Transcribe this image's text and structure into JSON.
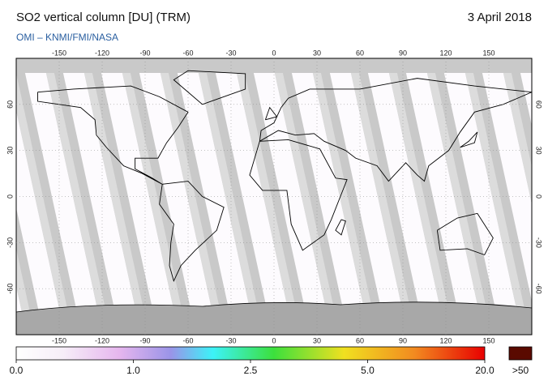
{
  "header": {
    "title": "SO2 vertical column [DU] (TRM)",
    "date": "3 April 2018",
    "credit": "OMI  –  KNMI/FMI/NASA"
  },
  "map": {
    "xlim": [
      -180,
      180
    ],
    "ylim": [
      -90,
      90
    ],
    "lon_ticks": [
      -150,
      -120,
      -90,
      -60,
      -30,
      0,
      30,
      60,
      90,
      120,
      150
    ],
    "lat_ticks": [
      60,
      30,
      0,
      -30,
      -60
    ]
  },
  "colorbar": {
    "ticks": [
      {
        "value": 0,
        "label": "0.0"
      },
      {
        "value": 1,
        "label": "1.0"
      },
      {
        "value": 2.5,
        "label": "2.5"
      },
      {
        "value": 5,
        "label": "5.0"
      },
      {
        "value": 20,
        "label": "20.0"
      }
    ],
    "overflow_label": ">50"
  }
}
